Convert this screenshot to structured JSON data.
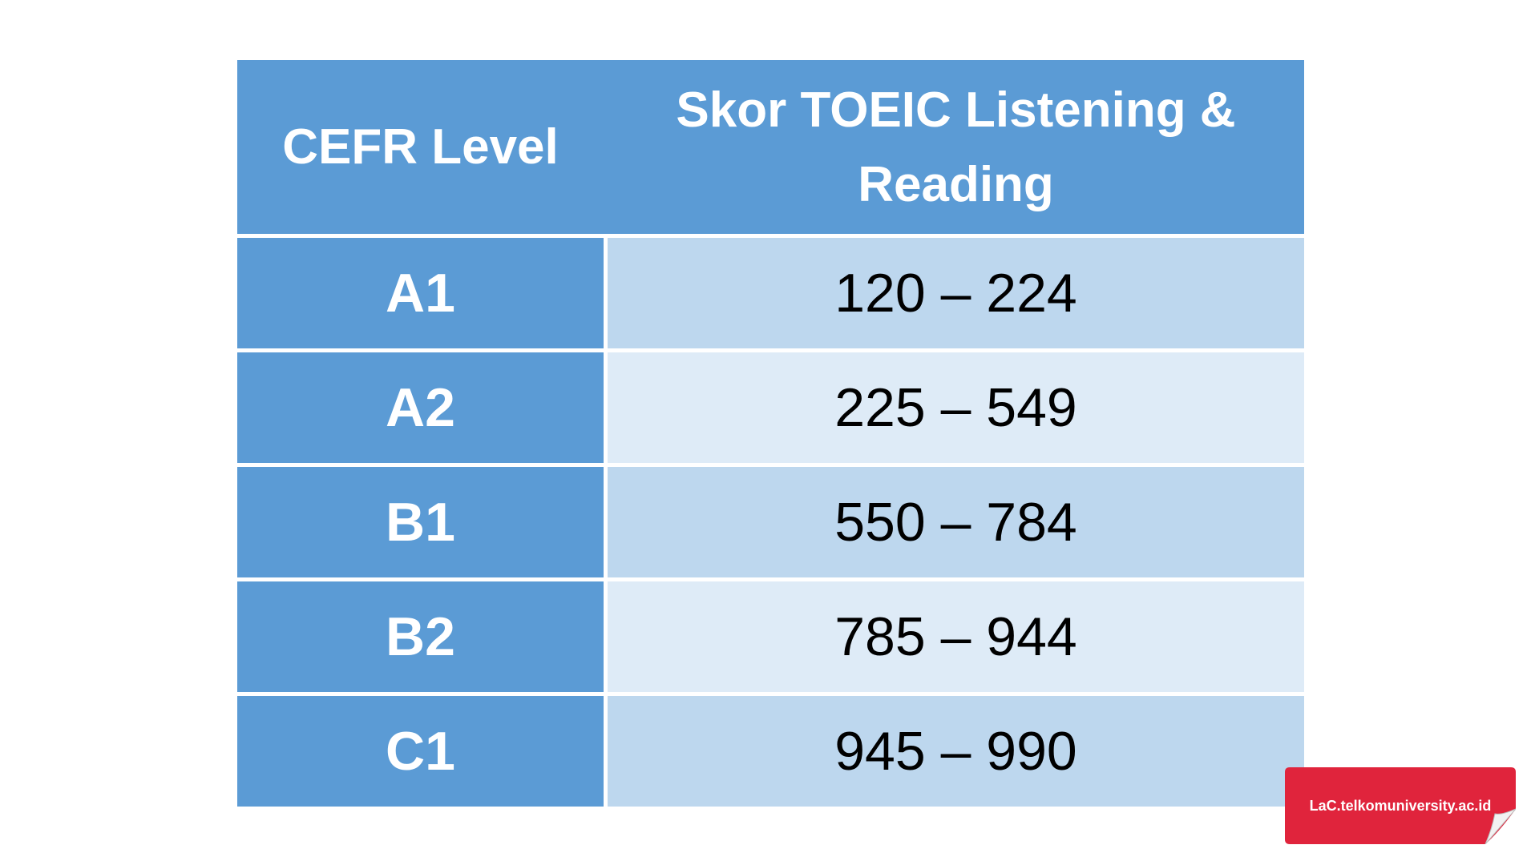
{
  "table": {
    "header": [
      "CEFR Level",
      "Skor TOEIC Listening & Reading"
    ],
    "rows": [
      [
        "A1",
        "120 – 224"
      ],
      [
        "A2",
        "225 – 549"
      ],
      [
        "B1",
        "550 – 784"
      ],
      [
        "B2",
        "785 – 944"
      ],
      [
        "C1",
        "945 – 990"
      ]
    ]
  },
  "badge": {
    "text": "LaC.telkomuniversity.ac.id"
  }
}
